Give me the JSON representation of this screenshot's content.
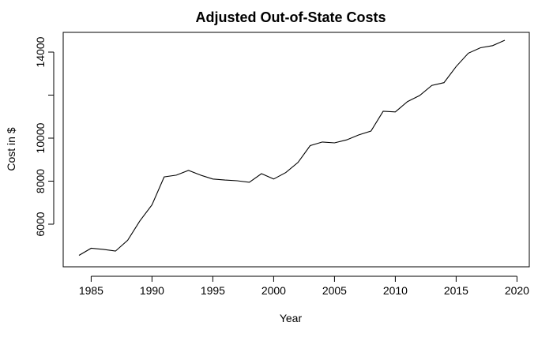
{
  "chart_data": {
    "type": "line",
    "title": "Adjusted Out-of-State Costs",
    "xlabel": "Year",
    "ylabel": "Cost in $",
    "xlim": [
      1984,
      2019
    ],
    "ylim": [
      4700,
      14500
    ],
    "x_ticks": [
      1985,
      1990,
      1995,
      2000,
      2005,
      2010,
      2015,
      2020
    ],
    "x_tick_labels": [
      "1985",
      "1990",
      "1995",
      "2000",
      "2005",
      "2010",
      "2015",
      "2020"
    ],
    "y_ticks": [
      6000,
      8000,
      10000,
      12000,
      14000
    ],
    "y_tick_labels": [
      "6000",
      "8000",
      "10000",
      "",
      "14000"
    ],
    "grid": false,
    "series": [
      {
        "x": [
          1984,
          1985,
          1986,
          1987,
          1988,
          1989,
          1990,
          1991,
          1992,
          1993,
          1994,
          1995,
          1996,
          1997,
          1998,
          1999,
          2000,
          2001,
          2002,
          2003,
          2004,
          2005,
          2006,
          2007,
          2008,
          2009,
          2010,
          2011,
          2012,
          2013,
          2014,
          2015,
          2016,
          2017,
          2018,
          2019
        ],
        "values": [
          4550,
          4880,
          4830,
          4750,
          5250,
          6150,
          6900,
          8200,
          8280,
          8500,
          8280,
          8100,
          8050,
          8020,
          7950,
          8350,
          8100,
          8400,
          8870,
          9650,
          9820,
          9780,
          9920,
          10150,
          10330,
          11250,
          11220,
          11700,
          11980,
          12450,
          12580,
          13330,
          13950,
          14200,
          14300,
          14550
        ]
      }
    ]
  }
}
